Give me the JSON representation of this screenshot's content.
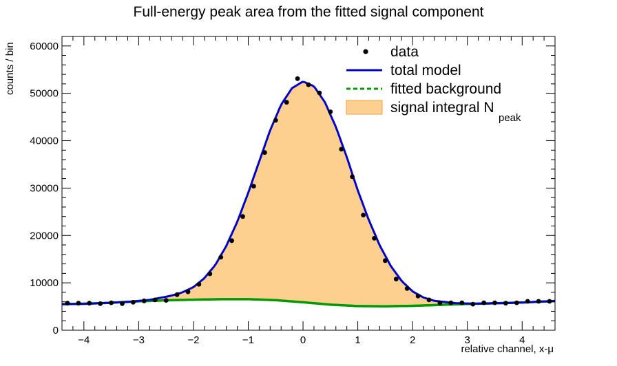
{
  "chart_data": {
    "type": "scatter",
    "title": "Full-energy peak area from the fitted signal component",
    "xlabel": "relative channel, x-μ",
    "ylabel": "counts / bin",
    "xlim": [
      -4.4,
      4.6
    ],
    "ylim": [
      0,
      62000
    ],
    "xticks": [
      -4,
      -3,
      -2,
      -1,
      0,
      1,
      2,
      3,
      4
    ],
    "xtick_labels": [
      "−4",
      "−3",
      "−2",
      "−1",
      "0",
      "1",
      "2",
      "3",
      "4"
    ],
    "yticks": [
      0,
      10000,
      20000,
      30000,
      40000,
      50000,
      60000
    ],
    "ytick_labels": [
      "0",
      "10000",
      "20000",
      "30000",
      "40000",
      "50000",
      "60000"
    ],
    "legend_position": "top-right",
    "series": [
      {
        "name": "data",
        "kind": "points",
        "color": "#000000",
        "x": [
          -4.3,
          -4.1,
          -3.9,
          -3.7,
          -3.5,
          -3.3,
          -3.1,
          -2.9,
          -2.7,
          -2.5,
          -2.3,
          -2.1,
          -1.9,
          -1.7,
          -1.5,
          -1.3,
          -1.1,
          -0.9,
          -0.7,
          -0.5,
          -0.3,
          -0.1,
          0.1,
          0.3,
          0.5,
          0.7,
          0.9,
          1.1,
          1.3,
          1.5,
          1.7,
          1.9,
          2.1,
          2.3,
          2.5,
          2.7,
          2.9,
          3.1,
          3.3,
          3.5,
          3.7,
          3.9,
          4.1,
          4.3,
          4.5
        ],
        "y": [
          5700,
          5700,
          5700,
          5600,
          5800,
          5600,
          5900,
          6200,
          6400,
          6300,
          7500,
          8100,
          9700,
          11900,
          15400,
          18900,
          24000,
          30400,
          37500,
          44300,
          48100,
          53100,
          51800,
          50100,
          46100,
          38200,
          32400,
          24300,
          19400,
          14700,
          10800,
          8800,
          7200,
          6400,
          5800,
          5800,
          5800,
          5500,
          5800,
          5800,
          5700,
          5800,
          6100,
          6100,
          6100
        ]
      },
      {
        "name": "total model",
        "kind": "line",
        "color": "#0000cc",
        "x": [
          -4.4,
          -4.0,
          -3.6,
          -3.2,
          -2.8,
          -2.4,
          -2.2,
          -2.0,
          -1.8,
          -1.6,
          -1.4,
          -1.2,
          -1.0,
          -0.8,
          -0.6,
          -0.4,
          -0.2,
          0.0,
          0.2,
          0.4,
          0.6,
          0.8,
          1.0,
          1.2,
          1.4,
          1.6,
          1.8,
          2.0,
          2.2,
          2.4,
          2.8,
          3.2,
          3.6,
          4.0,
          4.6
        ],
        "y": [
          5500,
          5550,
          5750,
          6000,
          6400,
          7300,
          8000,
          9100,
          11000,
          13800,
          17800,
          22900,
          29000,
          35600,
          42200,
          47600,
          51100,
          52500,
          51500,
          48100,
          42900,
          36500,
          29500,
          23300,
          17900,
          13600,
          10400,
          8200,
          6900,
          6200,
          5700,
          5600,
          5700,
          5850,
          6200
        ]
      },
      {
        "name": "fitted background",
        "kind": "line",
        "style": "dashed",
        "color": "#009900",
        "x": [
          -4.4,
          -4.0,
          -3.5,
          -3.0,
          -2.5,
          -2.0,
          -1.5,
          -1.0,
          -0.5,
          0.0,
          0.5,
          1.0,
          1.5,
          2.0,
          2.5,
          3.0,
          3.5,
          4.0,
          4.6
        ],
        "y": [
          5500,
          5600,
          5800,
          6100,
          6300,
          6450,
          6550,
          6550,
          6350,
          5900,
          5400,
          5100,
          5050,
          5150,
          5350,
          5550,
          5700,
          5850,
          6150
        ]
      },
      {
        "name": "signal integral N",
        "name_subscript": "peak",
        "kind": "area",
        "color": "#fdd08f"
      }
    ]
  }
}
